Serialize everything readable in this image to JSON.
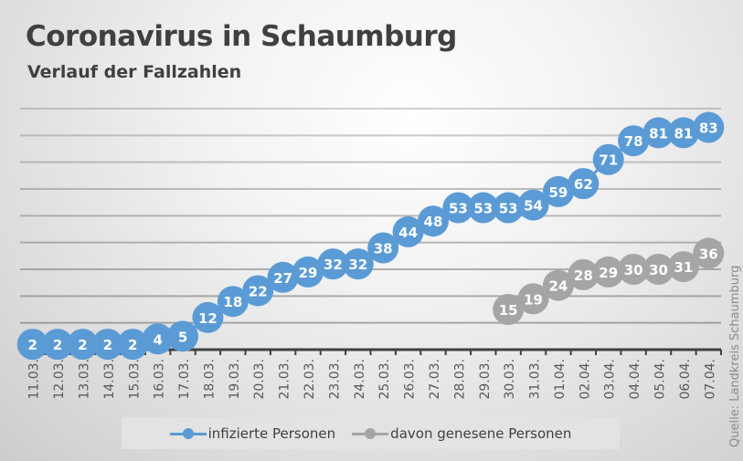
{
  "chart_data": {
    "type": "line",
    "title": "Coronavirus in Schaumburg",
    "subtitle": "Verlauf der Fallzahlen",
    "source": "Quelle: Landkreis Schaumburg",
    "categories": [
      "11.03.",
      "12.03.",
      "13.03.",
      "14.03.",
      "15.03.",
      "16.03.",
      "17.03.",
      "18.03.",
      "19.03.",
      "20.03.",
      "21.03.",
      "22.03.",
      "23.03.",
      "24.03.",
      "25.03.",
      "26.03.",
      "27.03.",
      "28.03.",
      "29.03.",
      "30.03.",
      "31.03.",
      "01.04.",
      "02.04.",
      "03.04.",
      "04.04.",
      "05.04.",
      "06.04.",
      "07.04."
    ],
    "series": [
      {
        "name": "infizierte Personen",
        "color": "#5b9bd5",
        "values": [
          2,
          2,
          2,
          2,
          2,
          4,
          5,
          12,
          18,
          22,
          27,
          29,
          32,
          32,
          38,
          44,
          48,
          53,
          53,
          53,
          54,
          59,
          62,
          71,
          78,
          81,
          81,
          83
        ]
      },
      {
        "name": "davon genesene Personen",
        "color": "#a5a5a5",
        "values": [
          null,
          null,
          null,
          null,
          null,
          null,
          null,
          null,
          null,
          null,
          null,
          null,
          null,
          null,
          null,
          null,
          null,
          null,
          null,
          15,
          19,
          24,
          28,
          29,
          30,
          30,
          31,
          36
        ]
      }
    ],
    "ylim": [
      0,
      90
    ],
    "grid": true,
    "gridStep": 10,
    "legend": "bottom"
  }
}
